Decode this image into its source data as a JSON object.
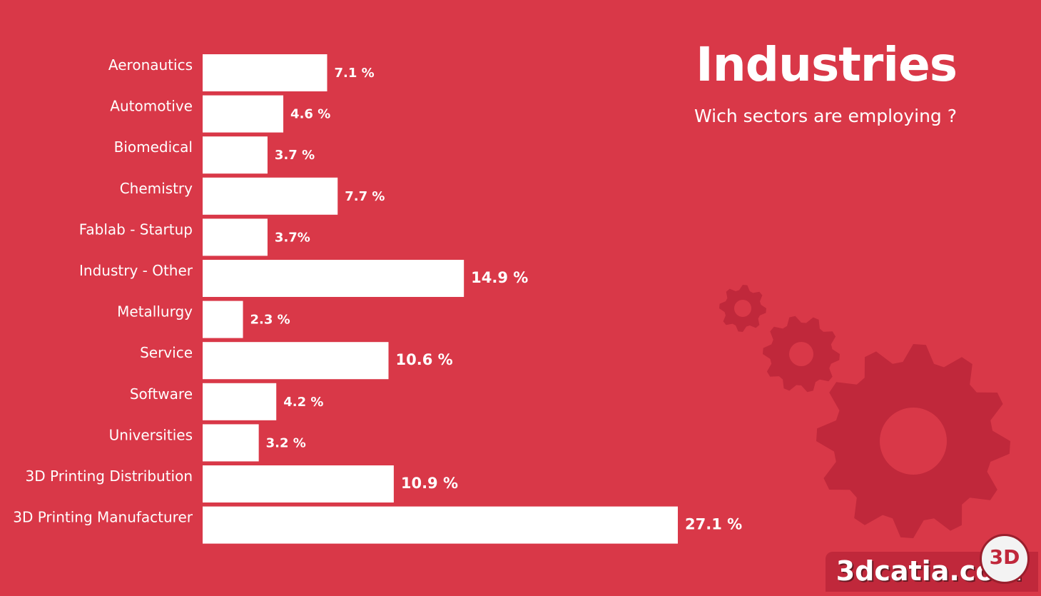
{
  "header": {
    "title": "Industries",
    "subtitle": "Wich sectors are employing ?"
  },
  "watermark": {
    "text": "3dcatia.com",
    "badge": "3D"
  },
  "icons": [
    "gear-icon-small",
    "gear-icon-medium",
    "gear-icon-large"
  ],
  "colors": {
    "background": "#d93848",
    "bar": "#ffffff",
    "gear": "#c0283b"
  },
  "chart_data": {
    "type": "bar",
    "orientation": "horizontal",
    "categories": [
      "Aeronautics",
      "Automotive",
      "Biomedical",
      "Chemistry",
      "Fablab - Startup",
      "Industry - Other",
      "Metallurgy",
      "Service",
      "Software",
      "Universities",
      "3D Printing Distribution",
      "3D Printing Manufacturer"
    ],
    "values": [
      7.1,
      4.6,
      3.7,
      7.7,
      3.7,
      14.9,
      2.3,
      10.6,
      4.2,
      3.2,
      10.9,
      27.1
    ],
    "value_labels": [
      "7.1 %",
      "4.6 %",
      "3.7 %",
      "7.7 %",
      "3.7%",
      "14.9 %",
      "2.3 %",
      "10.6 %",
      "4.2 %",
      "3.2 %",
      "10.9 %",
      "27.1 %"
    ],
    "title": "Industries",
    "subtitle": "Wich sectors are employing ?",
    "xlabel": "",
    "ylabel": "",
    "xlim": [
      0,
      27.1
    ],
    "grid": false,
    "legend": "none"
  }
}
